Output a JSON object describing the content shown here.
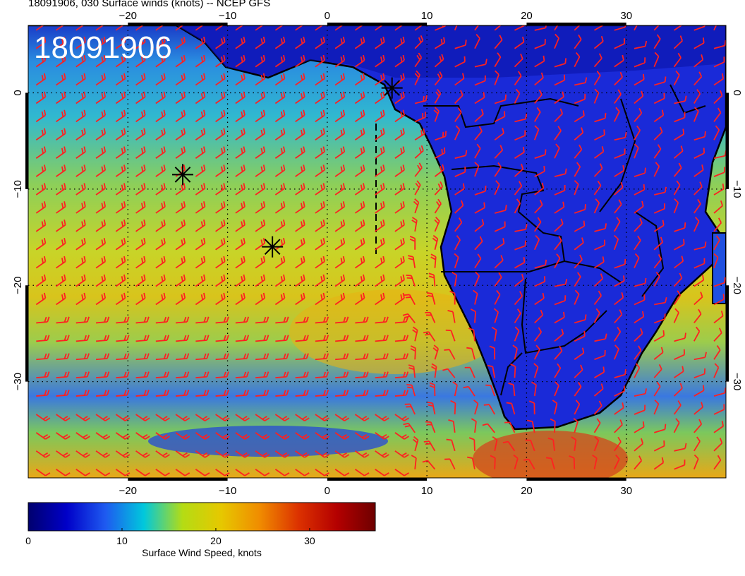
{
  "title": "18091906, 030 Surface winds (knots) -- NCEP GFS",
  "stamp": "18091906",
  "map": {
    "lon_range": [
      -30,
      40
    ],
    "lat_range": [
      -40,
      7
    ],
    "lon_ticks": [
      -20,
      -10,
      0,
      10,
      20,
      30
    ],
    "lat_ticks": [
      0,
      -10,
      -20,
      -30
    ],
    "lon_tick_labels": [
      "−20",
      "−10",
      "0",
      "10",
      "20",
      "30"
    ],
    "lat_tick_labels": [
      "0",
      "−10",
      "−20",
      "−30"
    ],
    "grid": "dotted",
    "markers": [
      {
        "lon": 6.5,
        "lat": 0.5
      },
      {
        "lon": -14.5,
        "lat": -8.5
      },
      {
        "lon": -5.5,
        "lat": -16
      }
    ],
    "marker_icon": "asterisk-icon",
    "barb_color": "#ff2020"
  },
  "colorbar": {
    "min": 0,
    "max": 37,
    "ticks": [
      0,
      10,
      20,
      30
    ],
    "tick_labels": [
      "0",
      "10",
      "20",
      "30"
    ],
    "label": "Surface Wind Speed, knots",
    "colors": [
      "#00006e",
      "#0000c8",
      "#1e5af0",
      "#00c8dc",
      "#b4dc14",
      "#e6c800",
      "#f08c00",
      "#dc3200",
      "#b40000",
      "#6e0000"
    ]
  }
}
